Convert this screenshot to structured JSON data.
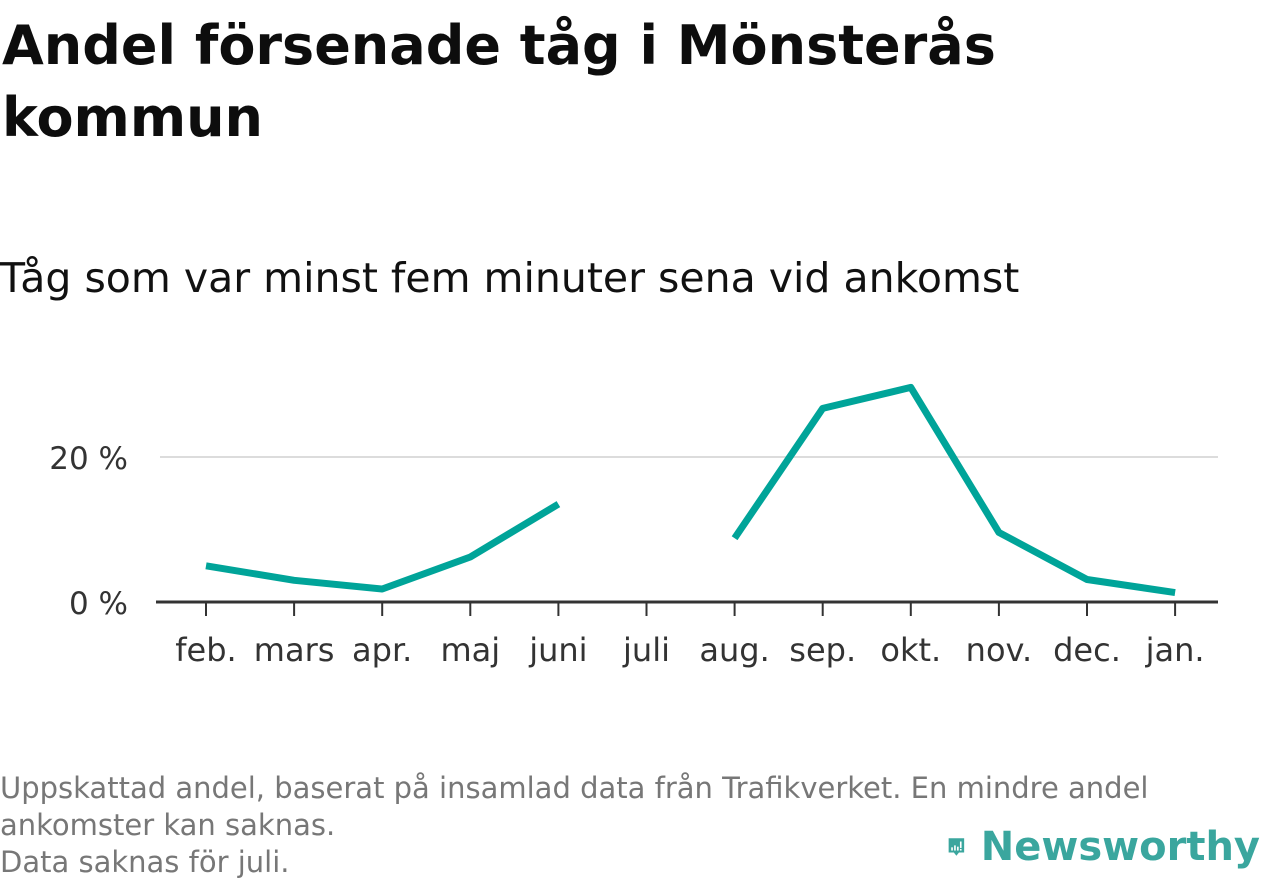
{
  "chart_data": {
    "type": "line",
    "title": "Andel försenade tåg i Mönsterås kommun",
    "subtitle": "Tåg som var minst fem minuter sena vid ankomst",
    "categories": [
      "feb.",
      "mars",
      "apr.",
      "maj",
      "juni",
      "juli",
      "aug.",
      "sep.",
      "okt.",
      "nov.",
      "dec.",
      "jan."
    ],
    "series": [
      {
        "values": [
          5.0,
          3.0,
          1.8,
          6.2,
          13.5,
          null,
          8.8,
          26.7,
          29.6,
          9.6,
          3.1,
          1.3
        ],
        "color": "#00a499"
      }
    ],
    "yticks": [
      {
        "value": 0,
        "label": "0 %"
      },
      {
        "value": 20,
        "label": "20 %"
      }
    ],
    "ylim": [
      0,
      30
    ],
    "xlabel": "",
    "ylabel": "",
    "grid": true,
    "legend": "none"
  },
  "notes": {
    "line1": "Uppskattad andel, baserat på insamlad data från Trafikverket. En mindre andel",
    "line2": "ankomster kan saknas.",
    "line3": "Data saknas för juli."
  },
  "brand": {
    "name": "Newsworthy",
    "icon": "newsworthy-logo-icon",
    "color": "#3aa69e"
  },
  "colors": {
    "axis": "#333333",
    "grid": "#dcdcdc",
    "tick_label": "#333333"
  }
}
